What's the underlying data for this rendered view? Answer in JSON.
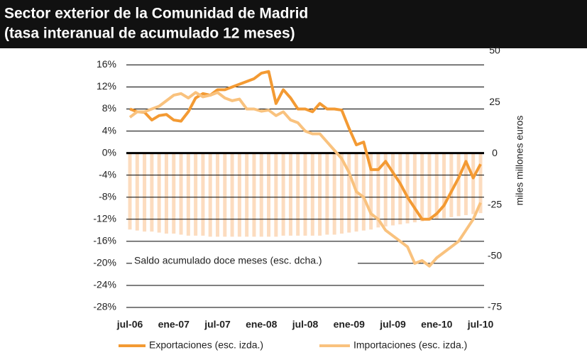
{
  "chart_data": {
    "type": "line",
    "title": "Sector exterior de la Comunidad de Madrid",
    "subtitle": "(tasa interanual de acumulado 12 meses)",
    "y2_label": "miles millones euros",
    "annotation": "Saldo acumulado doce meses (esc. dcha.)",
    "categories": [
      "jul-06",
      null,
      null,
      null,
      null,
      null,
      "ene-07",
      null,
      null,
      null,
      null,
      null,
      "jul-07",
      null,
      null,
      null,
      null,
      null,
      "ene-08",
      null,
      null,
      null,
      null,
      null,
      "jul-08",
      null,
      null,
      null,
      null,
      null,
      "ene-09",
      null,
      null,
      null,
      null,
      null,
      "jul-09",
      null,
      null,
      null,
      null,
      null,
      "ene-10",
      null,
      null,
      null,
      null,
      null,
      "jul-10"
    ],
    "series": [
      {
        "name": "Saldo acumulado doce meses (esc. dcha.)",
        "type": "bar",
        "axis": "y2",
        "color": "#fcdcbf",
        "values": [
          -37,
          -37.5,
          -38,
          -38,
          -38.5,
          -39,
          -39,
          -39.5,
          -40,
          -40,
          -40,
          -40.5,
          -40.5,
          -40.5,
          -40.5,
          -40.5,
          -40.5,
          -40.5,
          -40.5,
          -40.5,
          -40.5,
          -40,
          -40,
          -40,
          -40,
          -40,
          -40,
          -39.5,
          -39.5,
          -39,
          -38.5,
          -38,
          -37.5,
          -37,
          -36,
          -35.5,
          -35,
          -34.5,
          -34,
          -33.5,
          -33,
          -32.5,
          -32,
          -31.5,
          -31,
          -30.5,
          -30,
          -29.5,
          -29
        ]
      },
      {
        "name": "Exportaciones (esc. izda.)",
        "type": "line",
        "color": "#f39a33",
        "values": [
          8,
          7.5,
          7.4,
          6,
          6.8,
          7,
          6,
          5.8,
          7.5,
          10,
          10.8,
          10.5,
          11.5,
          11.5,
          12,
          12.5,
          13,
          13.5,
          14.5,
          14.8,
          9,
          11.5,
          10,
          8,
          8,
          7.5,
          9,
          8,
          8,
          7.8,
          4.5,
          1.5,
          2,
          -3,
          -3,
          -1.5,
          -3.5,
          -5.5,
          -8,
          -10,
          -12,
          -12,
          -11,
          -9.5,
          -7,
          -4.5,
          -1.5,
          -4.5,
          -2
        ]
      },
      {
        "name": "Importaciones (esc. izda.)",
        "type": "line",
        "color": "#f9c27e",
        "values": [
          6.5,
          7.5,
          7.5,
          8,
          8.5,
          9.5,
          10.5,
          10.8,
          10,
          11,
          10.2,
          10.5,
          11,
          10,
          9.5,
          9.8,
          8,
          8,
          7.6,
          7.8,
          6.8,
          7.5,
          6,
          5.5,
          4,
          3.5,
          3.5,
          2,
          0.5,
          -1,
          -3.5,
          -7,
          -8,
          -11,
          -12,
          -14,
          -15,
          -16,
          -17,
          -20,
          -19.5,
          -20.5,
          -19,
          -18,
          -17,
          -16,
          -14,
          -12,
          -9
        ]
      }
    ],
    "ylim": [
      -28,
      18.5
    ],
    "yticks": [
      {
        "value": 16,
        "label": "16%"
      },
      {
        "value": 12,
        "label": "12%"
      },
      {
        "value": 8,
        "label": "8%"
      },
      {
        "value": 4,
        "label": "4%"
      },
      {
        "value": 0,
        "label": "0%"
      },
      {
        "value": -4,
        "label": "-4%"
      },
      {
        "value": -8,
        "label": "-8%"
      },
      {
        "value": -12,
        "label": "-12%"
      },
      {
        "value": -16,
        "label": "-16%"
      },
      {
        "value": -20,
        "label": "-20%"
      },
      {
        "value": -24,
        "label": "-24%"
      },
      {
        "value": -28,
        "label": "-28%"
      }
    ],
    "y2lim": [
      -75,
      50
    ],
    "y2ticks": [
      50,
      25,
      0,
      -25,
      -50,
      -75
    ],
    "grid": true
  }
}
